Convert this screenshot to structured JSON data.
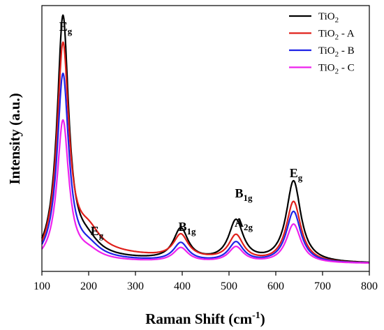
{
  "chart_data": {
    "type": "line",
    "title": "",
    "xlabel": "Raman Shift (cm",
    "xlabel_sup": "-1",
    "xlabel_suffix": ")",
    "ylabel": "Intensity (a.u.)",
    "xlim": [
      100,
      800
    ],
    "xticks": [
      100,
      200,
      300,
      400,
      500,
      600,
      700,
      800
    ],
    "yticks_shown": false,
    "grid": false,
    "legend_placement": "top-right",
    "series": [
      {
        "name": "TiO",
        "sub": "2",
        "suffix": "",
        "color": "#000000",
        "baseline": 3,
        "sigma": 14,
        "tail": 8,
        "peaks": [
          [
            145,
            344
          ],
          [
            197,
            18
          ],
          [
            397,
            45
          ],
          [
            515,
            58
          ],
          [
            638,
            117
          ]
        ],
        "x": [
          100,
          145,
          197,
          300,
          397,
          450,
          515,
          570,
          638,
          700,
          800
        ],
        "y": [
          10,
          347,
          30,
          8,
          48,
          10,
          61,
          12,
          120,
          6,
          3
        ]
      },
      {
        "name": "TiO",
        "sub": "2",
        "suffix": " - A",
        "color": "#e0201b",
        "baseline": 3,
        "sigma": 14,
        "tail": 18,
        "peaks": [
          [
            145,
            295
          ],
          [
            200,
            26
          ],
          [
            397,
            33
          ],
          [
            515,
            36
          ],
          [
            638,
            88
          ]
        ],
        "x": [
          100,
          145,
          200,
          300,
          397,
          450,
          515,
          570,
          638,
          700,
          800
        ],
        "y": [
          14,
          298,
          36,
          18,
          38,
          14,
          40,
          18,
          92,
          8,
          3
        ]
      },
      {
        "name": "TiO",
        "sub": "2",
        "suffix": " - B",
        "color": "#1e22e6",
        "baseline": 3,
        "sigma": 14,
        "tail": 6,
        "peaks": [
          [
            145,
            264
          ],
          [
            200,
            14
          ],
          [
            397,
            26
          ],
          [
            515,
            28
          ],
          [
            638,
            74
          ]
        ],
        "x": [
          100,
          145,
          200,
          300,
          397,
          450,
          515,
          570,
          638,
          700,
          800
        ],
        "y": [
          10,
          267,
          20,
          6,
          29,
          8,
          31,
          10,
          77,
          6,
          3
        ]
      },
      {
        "name": "TiO",
        "sub": "2",
        "suffix": " - C",
        "color": "#ee22ee",
        "baseline": 3,
        "sigma": 14,
        "tail": 4,
        "peaks": [
          [
            145,
            200
          ],
          [
            200,
            10
          ],
          [
            397,
            20
          ],
          [
            515,
            22
          ],
          [
            638,
            56
          ]
        ],
        "x": [
          100,
          145,
          200,
          300,
          397,
          450,
          515,
          570,
          638,
          700,
          800
        ],
        "y": [
          8,
          203,
          14,
          5,
          23,
          6,
          25,
          8,
          59,
          5,
          3
        ]
      }
    ],
    "annotations": [
      {
        "main": "E",
        "sub": "g",
        "x": 145
      },
      {
        "main": "E",
        "sub": "g",
        "x": 210
      },
      {
        "main": "B",
        "sub": "1g",
        "x": 397
      },
      {
        "main": "A",
        "sub": "2g",
        "x": 515
      },
      {
        "main": "B",
        "sub": "1g",
        "x": 518
      },
      {
        "main": "E",
        "sub": "g",
        "x": 638
      }
    ]
  }
}
